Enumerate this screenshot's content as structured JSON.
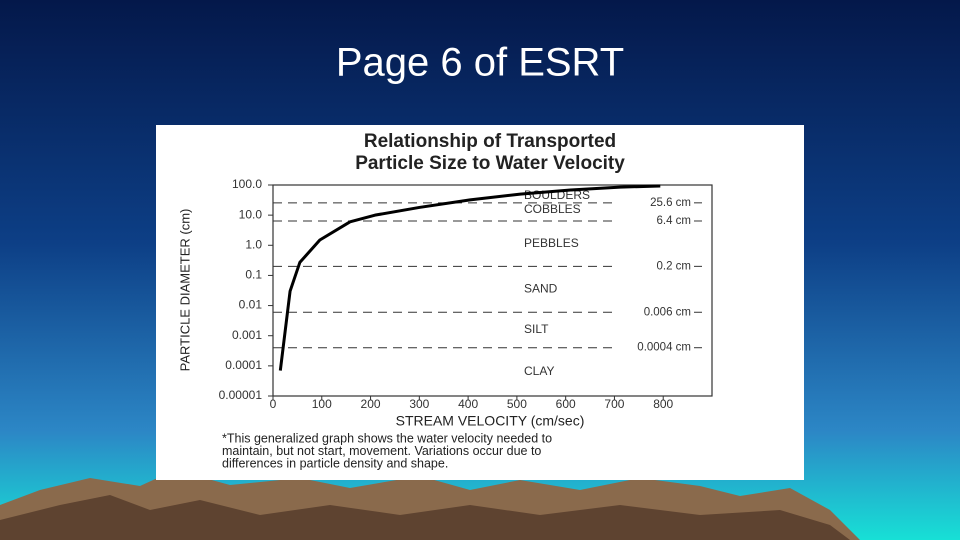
{
  "slide_title": "Page 6 of ESRT",
  "chart_data": {
    "type": "line",
    "title_lines": [
      "Relationship of Transported",
      "Particle Size to Water Velocity"
    ],
    "x_label": "STREAM VELOCITY (cm/sec)",
    "y_label": "PARTICLE DIAMETER (cm)",
    "xlim": [
      0,
      900
    ],
    "xticks": [
      0,
      100,
      200,
      300,
      400,
      500,
      600,
      700,
      800
    ],
    "ylim": [
      1e-05,
      100
    ],
    "log_y": true,
    "yticks": [
      {
        "value": 100,
        "label": "100.0"
      },
      {
        "value": 10,
        "label": "10.0"
      },
      {
        "value": 1,
        "label": "1.0"
      },
      0.1,
      0.01,
      0.001,
      0.0001,
      1e-05
    ],
    "x": [
      15,
      35,
      55,
      96,
      158,
      209,
      300,
      404,
      507,
      610,
      712,
      794
    ],
    "series": [
      {
        "color": "#000000",
        "values": [
          7e-05,
          0.03,
          0.27,
          1.5,
          6,
          10,
          18,
          32,
          50,
          68,
          85,
          93
        ]
      }
    ],
    "reference_lines": [
      {
        "value": 25.6,
        "label": "25.6 cm"
      },
      {
        "value": 6.4,
        "label": "6.4 cm"
      },
      {
        "value": 0.2,
        "label": "0.2 cm"
      },
      {
        "value": 0.006,
        "label": "0.006 cm"
      },
      {
        "value": 0.0004,
        "label": "0.0004 cm"
      }
    ],
    "regions": [
      "BOULDERS",
      "COBBLES",
      "PEBBLES",
      "SAND",
      "SILT",
      "CLAY"
    ],
    "note_lines": [
      "*This generalized graph shows the water velocity needed to",
      "maintain, but not start, movement. Variations occur due to",
      "differences in particle density and shape."
    ]
  }
}
